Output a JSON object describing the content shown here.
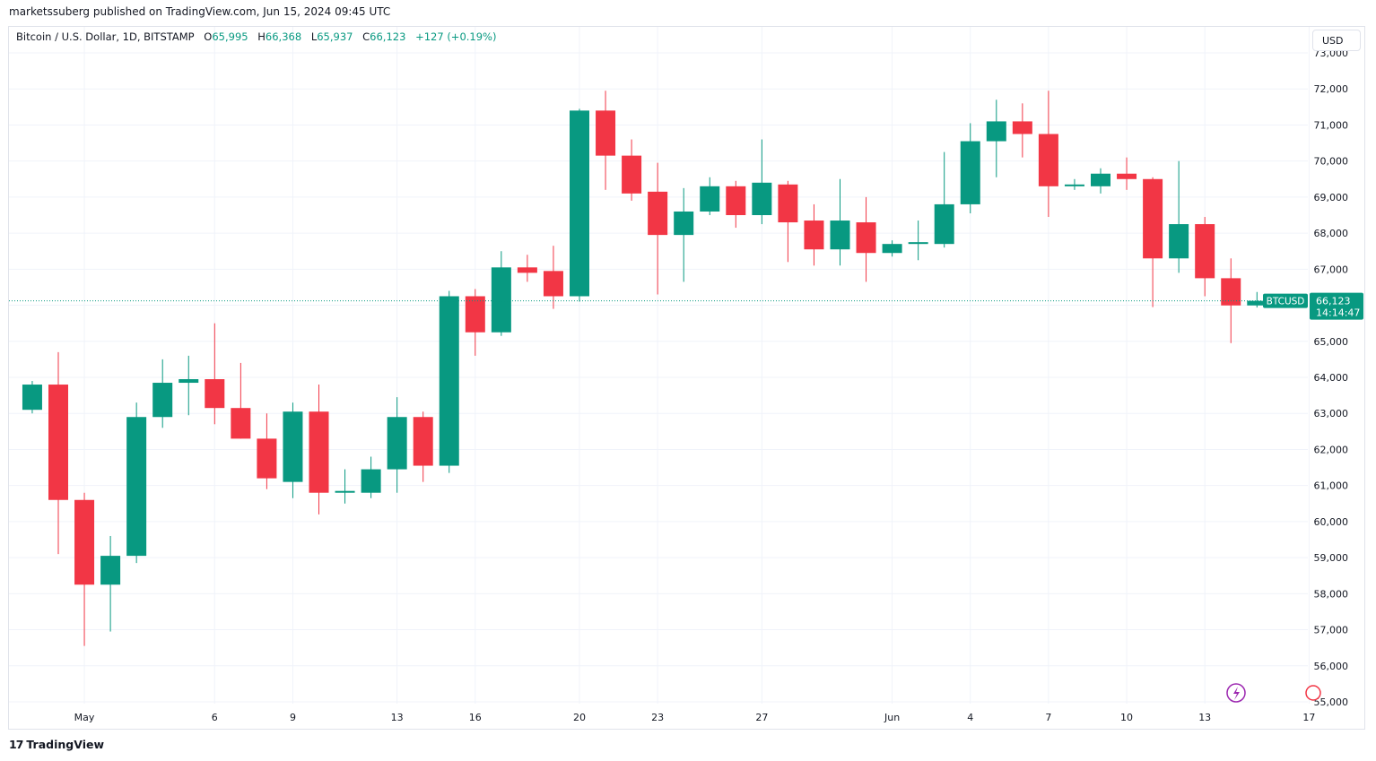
{
  "header": {
    "publisher_line": "marketssuberg published on TradingView.com, Jun 15, 2024 09:45 UTC"
  },
  "legend": {
    "symbol": "Bitcoin / U.S. Dollar, 1D, BITSTAMP",
    "o_label": "O",
    "o_value": "65,995",
    "h_label": "H",
    "h_value": "66,368",
    "l_label": "L",
    "l_value": "65,937",
    "c_label": "C",
    "c_value": "66,123",
    "change": "+127 (+0.19%)"
  },
  "currency_button": "USD",
  "price_tag": {
    "symbol": "BTCUSD",
    "price": "66,123",
    "countdown": "14:14:47"
  },
  "footer": {
    "logo_mark": "17",
    "brand": "TradingView"
  },
  "colors": {
    "up": "#089981",
    "down": "#f23645",
    "grid": "#f0f3fa",
    "text": "#131722",
    "border": "#e0e3eb"
  },
  "chart_data": {
    "type": "candlestick",
    "title": "Bitcoin / U.S. Dollar, 1D, BITSTAMP",
    "ylim": [
      54900,
      73300
    ],
    "y_ticks": [
      55000,
      56000,
      57000,
      58000,
      59000,
      60000,
      61000,
      62000,
      63000,
      64000,
      65000,
      66000,
      67000,
      68000,
      69000,
      70000,
      71000,
      72000,
      73000
    ],
    "y_tick_labels": [
      "55,000",
      "56,000",
      "57,000",
      "58,000",
      "59,000",
      "60,000",
      "61,000",
      "62,000",
      "63,000",
      "64,000",
      "65,000",
      "66,000",
      "67,000",
      "68,000",
      "69,000",
      "70,000",
      "71,000",
      "72,000",
      "73,000"
    ],
    "x_ticks": [
      {
        "day": 1,
        "label": "May"
      },
      {
        "day": 6,
        "label": "6"
      },
      {
        "day": 9,
        "label": "9"
      },
      {
        "day": 13,
        "label": "13"
      },
      {
        "day": 16,
        "label": "16"
      },
      {
        "day": 20,
        "label": "20"
      },
      {
        "day": 23,
        "label": "23"
      },
      {
        "day": 27,
        "label": "27"
      },
      {
        "day": 32,
        "label": "Jun"
      },
      {
        "day": 35,
        "label": "4"
      },
      {
        "day": 38,
        "label": "7"
      },
      {
        "day": 41,
        "label": "10"
      },
      {
        "day": 44,
        "label": "13"
      },
      {
        "day": 48,
        "label": "17"
      }
    ],
    "last_price": 66123,
    "series": [
      {
        "name": "BTCUSD",
        "candles": [
          {
            "day": -1,
            "o": 63100,
            "h": 63900,
            "l": 63000,
            "c": 63800
          },
          {
            "day": 0,
            "o": 63800,
            "h": 64700,
            "l": 59100,
            "c": 60600
          },
          {
            "day": 1,
            "o": 60600,
            "h": 60800,
            "l": 56550,
            "c": 58250
          },
          {
            "day": 2,
            "o": 58250,
            "h": 59600,
            "l": 56950,
            "c": 59050
          },
          {
            "day": 3,
            "o": 59050,
            "h": 63300,
            "l": 58850,
            "c": 62900
          },
          {
            "day": 4,
            "o": 62900,
            "h": 64500,
            "l": 62600,
            "c": 63850
          },
          {
            "day": 5,
            "o": 63850,
            "h": 64600,
            "l": 62950,
            "c": 63950
          },
          {
            "day": 6,
            "o": 63950,
            "h": 65500,
            "l": 62700,
            "c": 63150
          },
          {
            "day": 7,
            "o": 63150,
            "h": 64400,
            "l": 62300,
            "c": 62300
          },
          {
            "day": 8,
            "o": 62300,
            "h": 63000,
            "l": 60900,
            "c": 61200
          },
          {
            "day": 9,
            "o": 61100,
            "h": 63300,
            "l": 60650,
            "c": 63050
          },
          {
            "day": 10,
            "o": 63050,
            "h": 63800,
            "l": 60200,
            "c": 60800
          },
          {
            "day": 11,
            "o": 60800,
            "h": 61450,
            "l": 60500,
            "c": 60850
          },
          {
            "day": 12,
            "o": 60800,
            "h": 61800,
            "l": 60650,
            "c": 61450
          },
          {
            "day": 13,
            "o": 61450,
            "h": 63450,
            "l": 60800,
            "c": 62900
          },
          {
            "day": 14,
            "o": 62900,
            "h": 63050,
            "l": 61100,
            "c": 61550
          },
          {
            "day": 15,
            "o": 61550,
            "h": 66400,
            "l": 61350,
            "c": 66250
          },
          {
            "day": 16,
            "o": 66250,
            "h": 66450,
            "l": 64600,
            "c": 65250
          },
          {
            "day": 17,
            "o": 65250,
            "h": 67500,
            "l": 65150,
            "c": 67050
          },
          {
            "day": 18,
            "o": 67050,
            "h": 67400,
            "l": 66650,
            "c": 66900
          },
          {
            "day": 19,
            "o": 66950,
            "h": 67650,
            "l": 65900,
            "c": 66250
          },
          {
            "day": 20,
            "o": 66250,
            "h": 71450,
            "l": 66100,
            "c": 71400
          },
          {
            "day": 21,
            "o": 71400,
            "h": 71950,
            "l": 69200,
            "c": 70150
          },
          {
            "day": 22,
            "o": 70150,
            "h": 70600,
            "l": 68900,
            "c": 69100
          },
          {
            "day": 23,
            "o": 69150,
            "h": 69950,
            "l": 66300,
            "c": 67950
          },
          {
            "day": 24,
            "o": 67950,
            "h": 69250,
            "l": 66650,
            "c": 68600
          },
          {
            "day": 25,
            "o": 68600,
            "h": 69550,
            "l": 68500,
            "c": 69300
          },
          {
            "day": 26,
            "o": 69300,
            "h": 69450,
            "l": 68150,
            "c": 68500
          },
          {
            "day": 27,
            "o": 68500,
            "h": 70600,
            "l": 68250,
            "c": 69400
          },
          {
            "day": 28,
            "o": 69350,
            "h": 69450,
            "l": 67200,
            "c": 68300
          },
          {
            "day": 29,
            "o": 68350,
            "h": 68800,
            "l": 67100,
            "c": 67550
          },
          {
            "day": 30,
            "o": 67550,
            "h": 69500,
            "l": 67100,
            "c": 68350
          },
          {
            "day": 31,
            "o": 68300,
            "h": 69000,
            "l": 66650,
            "c": 67450
          },
          {
            "day": 32,
            "o": 67450,
            "h": 67800,
            "l": 67350,
            "c": 67700
          },
          {
            "day": 33,
            "o": 67700,
            "h": 68350,
            "l": 67250,
            "c": 67750
          },
          {
            "day": 34,
            "o": 67700,
            "h": 70250,
            "l": 67600,
            "c": 68800
          },
          {
            "day": 35,
            "o": 68800,
            "h": 71050,
            "l": 68550,
            "c": 70550
          },
          {
            "day": 36,
            "o": 70550,
            "h": 71700,
            "l": 69550,
            "c": 71100
          },
          {
            "day": 37,
            "o": 71100,
            "h": 71600,
            "l": 70100,
            "c": 70750
          },
          {
            "day": 38,
            "o": 70750,
            "h": 71950,
            "l": 68450,
            "c": 69300
          },
          {
            "day": 39,
            "o": 69300,
            "h": 69500,
            "l": 69200,
            "c": 69350
          },
          {
            "day": 40,
            "o": 69300,
            "h": 69800,
            "l": 69100,
            "c": 69650
          },
          {
            "day": 41,
            "o": 69650,
            "h": 70100,
            "l": 69200,
            "c": 69500
          },
          {
            "day": 42,
            "o": 69500,
            "h": 69550,
            "l": 65950,
            "c": 67300
          },
          {
            "day": 43,
            "o": 67300,
            "h": 70000,
            "l": 66900,
            "c": 68250
          },
          {
            "day": 44,
            "o": 68250,
            "h": 68450,
            "l": 66250,
            "c": 66750
          },
          {
            "day": 45,
            "o": 66750,
            "h": 67300,
            "l": 64950,
            "c": 65995
          },
          {
            "day": 46,
            "o": 65995,
            "h": 66368,
            "l": 65937,
            "c": 66123
          }
        ]
      }
    ]
  }
}
